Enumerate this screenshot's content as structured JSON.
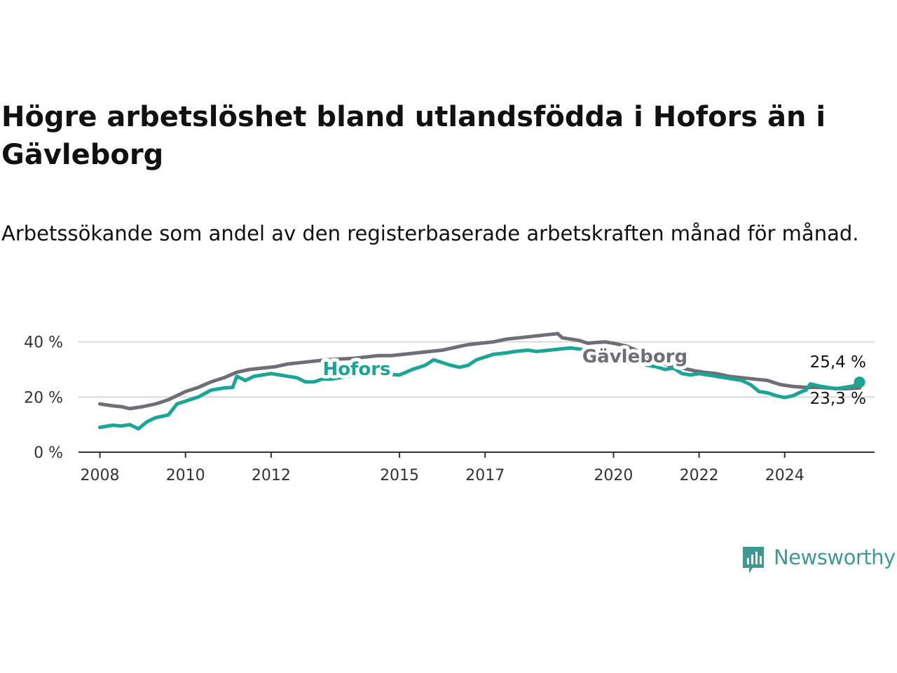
{
  "title": "Högre arbetslöshet bland utlandsfödda i Hofors än i Gävleborg",
  "subtitle": "Arbetssökande som andel av den registerbaserade arbetskraften månad för månad.",
  "brand": "Newsworthy",
  "colors": {
    "hofors": "#1aa595",
    "gavleborg": "#6f6e76",
    "grid": "#d9d9d9",
    "axis": "#333333",
    "brand": "#3e9a91"
  },
  "chart_data": {
    "type": "line",
    "title": "Högre arbetslöshet bland utlandsfödda i Hofors än i Gävleborg",
    "xlabel": "",
    "ylabel": "",
    "x_ticks": [
      "2008",
      "2010",
      "2012",
      "2015",
      "2017",
      "2020",
      "2022",
      "2024"
    ],
    "y_ticks": [
      "0 %",
      "20 %",
      "40 %"
    ],
    "ylim": [
      0,
      45
    ],
    "xlim": [
      2007.5,
      2026.1
    ],
    "grid": "horizontal",
    "series": [
      {
        "name": "Hofors",
        "label_x": 2014.0,
        "label_y": 28,
        "end_value_label": "25,4 %",
        "points": [
          [
            2008.0,
            9.0
          ],
          [
            2008.3,
            9.8
          ],
          [
            2008.5,
            9.5
          ],
          [
            2008.7,
            10.0
          ],
          [
            2008.9,
            8.5
          ],
          [
            2009.1,
            11.0
          ],
          [
            2009.3,
            12.5
          ],
          [
            2009.6,
            13.5
          ],
          [
            2009.8,
            17.5
          ],
          [
            2010.0,
            18.5
          ],
          [
            2010.3,
            20.0
          ],
          [
            2010.6,
            22.5
          ],
          [
            2010.9,
            23.3
          ],
          [
            2011.1,
            23.5
          ],
          [
            2011.2,
            27.5
          ],
          [
            2011.4,
            26.0
          ],
          [
            2011.6,
            27.5
          ],
          [
            2011.8,
            28.0
          ],
          [
            2012.0,
            28.5
          ],
          [
            2012.2,
            28.0
          ],
          [
            2012.4,
            27.5
          ],
          [
            2012.6,
            27.0
          ],
          [
            2012.8,
            25.5
          ],
          [
            2013.0,
            25.5
          ],
          [
            2013.2,
            26.5
          ],
          [
            2013.4,
            26.5
          ],
          [
            2013.6,
            27.0
          ],
          [
            2013.8,
            27.5
          ],
          [
            2014.0,
            27.8
          ],
          [
            2014.5,
            28.5
          ],
          [
            2015.0,
            28.0
          ],
          [
            2015.3,
            30.0
          ],
          [
            2015.6,
            31.5
          ],
          [
            2015.8,
            33.5
          ],
          [
            2016.0,
            32.5
          ],
          [
            2016.2,
            31.5
          ],
          [
            2016.4,
            30.8
          ],
          [
            2016.6,
            31.5
          ],
          [
            2016.8,
            33.5
          ],
          [
            2017.0,
            34.5
          ],
          [
            2017.2,
            35.5
          ],
          [
            2017.5,
            36.0
          ],
          [
            2017.7,
            36.5
          ],
          [
            2018.0,
            37.0
          ],
          [
            2018.2,
            36.5
          ],
          [
            2018.5,
            37.0
          ],
          [
            2018.8,
            37.5
          ],
          [
            2019.0,
            37.8
          ],
          [
            2019.3,
            37.2
          ],
          [
            2019.6,
            37.0
          ],
          [
            2020.0,
            36.0
          ],
          [
            2020.3,
            34.0
          ],
          [
            2020.6,
            32.5
          ],
          [
            2020.8,
            31.5
          ],
          [
            2021.0,
            31.0
          ],
          [
            2021.2,
            30.0
          ],
          [
            2021.4,
            30.5
          ],
          [
            2021.6,
            28.5
          ],
          [
            2021.8,
            28.0
          ],
          [
            2022.0,
            28.5
          ],
          [
            2022.2,
            28.0
          ],
          [
            2022.4,
            27.5
          ],
          [
            2022.6,
            27.0
          ],
          [
            2022.8,
            26.5
          ],
          [
            2023.0,
            26.0
          ],
          [
            2023.2,
            24.5
          ],
          [
            2023.4,
            22.0
          ],
          [
            2023.6,
            21.5
          ],
          [
            2023.8,
            20.5
          ],
          [
            2024.0,
            19.8
          ],
          [
            2024.2,
            20.5
          ],
          [
            2024.4,
            22.0
          ],
          [
            2024.5,
            22.5
          ],
          [
            2024.6,
            24.8
          ],
          [
            2024.8,
            24.0
          ],
          [
            2025.0,
            23.5
          ],
          [
            2025.2,
            23.0
          ],
          [
            2025.4,
            23.5
          ],
          [
            2025.6,
            24.0
          ],
          [
            2025.75,
            25.4
          ]
        ]
      },
      {
        "name": "Gävleborg",
        "label_x": 2020.5,
        "label_y": 32.5,
        "end_value_label": "23,3 %",
        "points": [
          [
            2008.0,
            17.5
          ],
          [
            2008.3,
            16.8
          ],
          [
            2008.5,
            16.5
          ],
          [
            2008.7,
            15.8
          ],
          [
            2009.0,
            16.5
          ],
          [
            2009.3,
            17.5
          ],
          [
            2009.6,
            19.0
          ],
          [
            2009.8,
            20.5
          ],
          [
            2010.0,
            22.0
          ],
          [
            2010.3,
            23.5
          ],
          [
            2010.6,
            25.5
          ],
          [
            2010.9,
            27.0
          ],
          [
            2011.2,
            29.0
          ],
          [
            2011.5,
            30.0
          ],
          [
            2011.8,
            30.5
          ],
          [
            2012.1,
            31.0
          ],
          [
            2012.4,
            32.0
          ],
          [
            2012.7,
            32.5
          ],
          [
            2013.0,
            33.0
          ],
          [
            2013.3,
            33.5
          ],
          [
            2013.6,
            33.8
          ],
          [
            2013.9,
            34.0
          ],
          [
            2014.2,
            34.5
          ],
          [
            2014.5,
            35.0
          ],
          [
            2014.8,
            35.0
          ],
          [
            2015.1,
            35.5
          ],
          [
            2015.4,
            36.0
          ],
          [
            2015.7,
            36.5
          ],
          [
            2016.0,
            37.0
          ],
          [
            2016.3,
            38.0
          ],
          [
            2016.6,
            39.0
          ],
          [
            2016.9,
            39.5
          ],
          [
            2017.2,
            40.0
          ],
          [
            2017.5,
            41.0
          ],
          [
            2017.8,
            41.5
          ],
          [
            2018.1,
            42.0
          ],
          [
            2018.4,
            42.5
          ],
          [
            2018.7,
            43.0
          ],
          [
            2018.8,
            41.5
          ],
          [
            2019.0,
            41.0
          ],
          [
            2019.2,
            40.5
          ],
          [
            2019.4,
            39.5
          ],
          [
            2019.6,
            39.8
          ],
          [
            2019.8,
            40.0
          ],
          [
            2020.0,
            39.5
          ],
          [
            2020.3,
            38.5
          ],
          [
            2020.6,
            36.5
          ],
          [
            2020.9,
            34.0
          ],
          [
            2021.1,
            32.5
          ],
          [
            2021.3,
            31.5
          ],
          [
            2021.6,
            30.5
          ],
          [
            2021.9,
            29.5
          ],
          [
            2022.1,
            29.0
          ],
          [
            2022.4,
            28.5
          ],
          [
            2022.7,
            27.5
          ],
          [
            2023.0,
            27.0
          ],
          [
            2023.3,
            26.5
          ],
          [
            2023.6,
            26.0
          ],
          [
            2023.9,
            24.5
          ],
          [
            2024.2,
            23.8
          ],
          [
            2024.5,
            23.5
          ],
          [
            2024.8,
            23.5
          ],
          [
            2025.1,
            23.2
          ],
          [
            2025.4,
            23.0
          ],
          [
            2025.75,
            23.3
          ]
        ]
      }
    ]
  }
}
